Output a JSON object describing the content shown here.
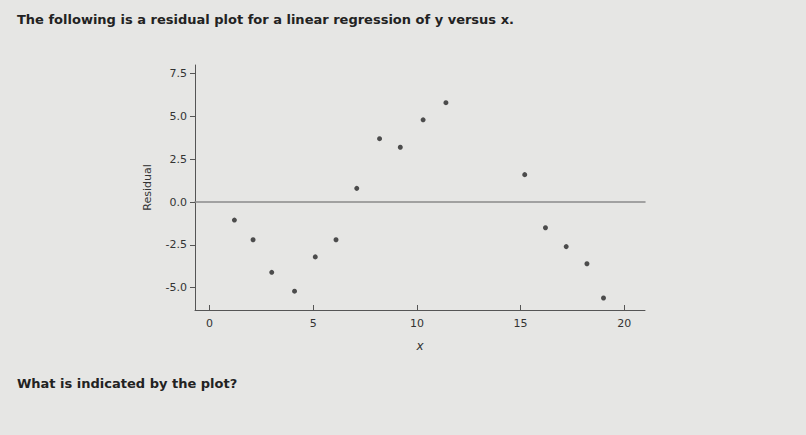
{
  "chart_data": {
    "type": "scatter",
    "title": "The following is a residual plot for a linear regression of y versus x.",
    "annotations": [
      "What is indicated by the plot?"
    ],
    "x_label": "x",
    "y_label": "Residual",
    "x": [
      1.2,
      2.1,
      3.0,
      4.1,
      5.1,
      6.1,
      7.1,
      8.2,
      9.2,
      10.3,
      11.4,
      15.2,
      16.2,
      17.2,
      18.2,
      19.0
    ],
    "values": [
      -1.05,
      -2.2,
      -4.1,
      -5.2,
      -3.2,
      -2.2,
      0.8,
      3.7,
      3.2,
      4.8,
      5.8,
      1.6,
      -1.5,
      -2.6,
      -3.6,
      -5.6
    ],
    "color": "#262626",
    "marker": "circle",
    "xlim": [
      -0.7,
      21
    ],
    "xticks": [
      0,
      5,
      10,
      15,
      20
    ],
    "ylim": [
      -6.3,
      8.0
    ],
    "yticks": [
      {
        "value": -5,
        "label": "-5.0"
      },
      {
        "value": -2.5,
        "label": "-2.5"
      },
      {
        "value": 0,
        "label": "0.0"
      },
      {
        "value": 2.5,
        "label": "2.5"
      },
      {
        "value": 5,
        "label": "5.0"
      },
      {
        "value": 7.5,
        "label": "7.5"
      }
    ],
    "grid": false
  }
}
